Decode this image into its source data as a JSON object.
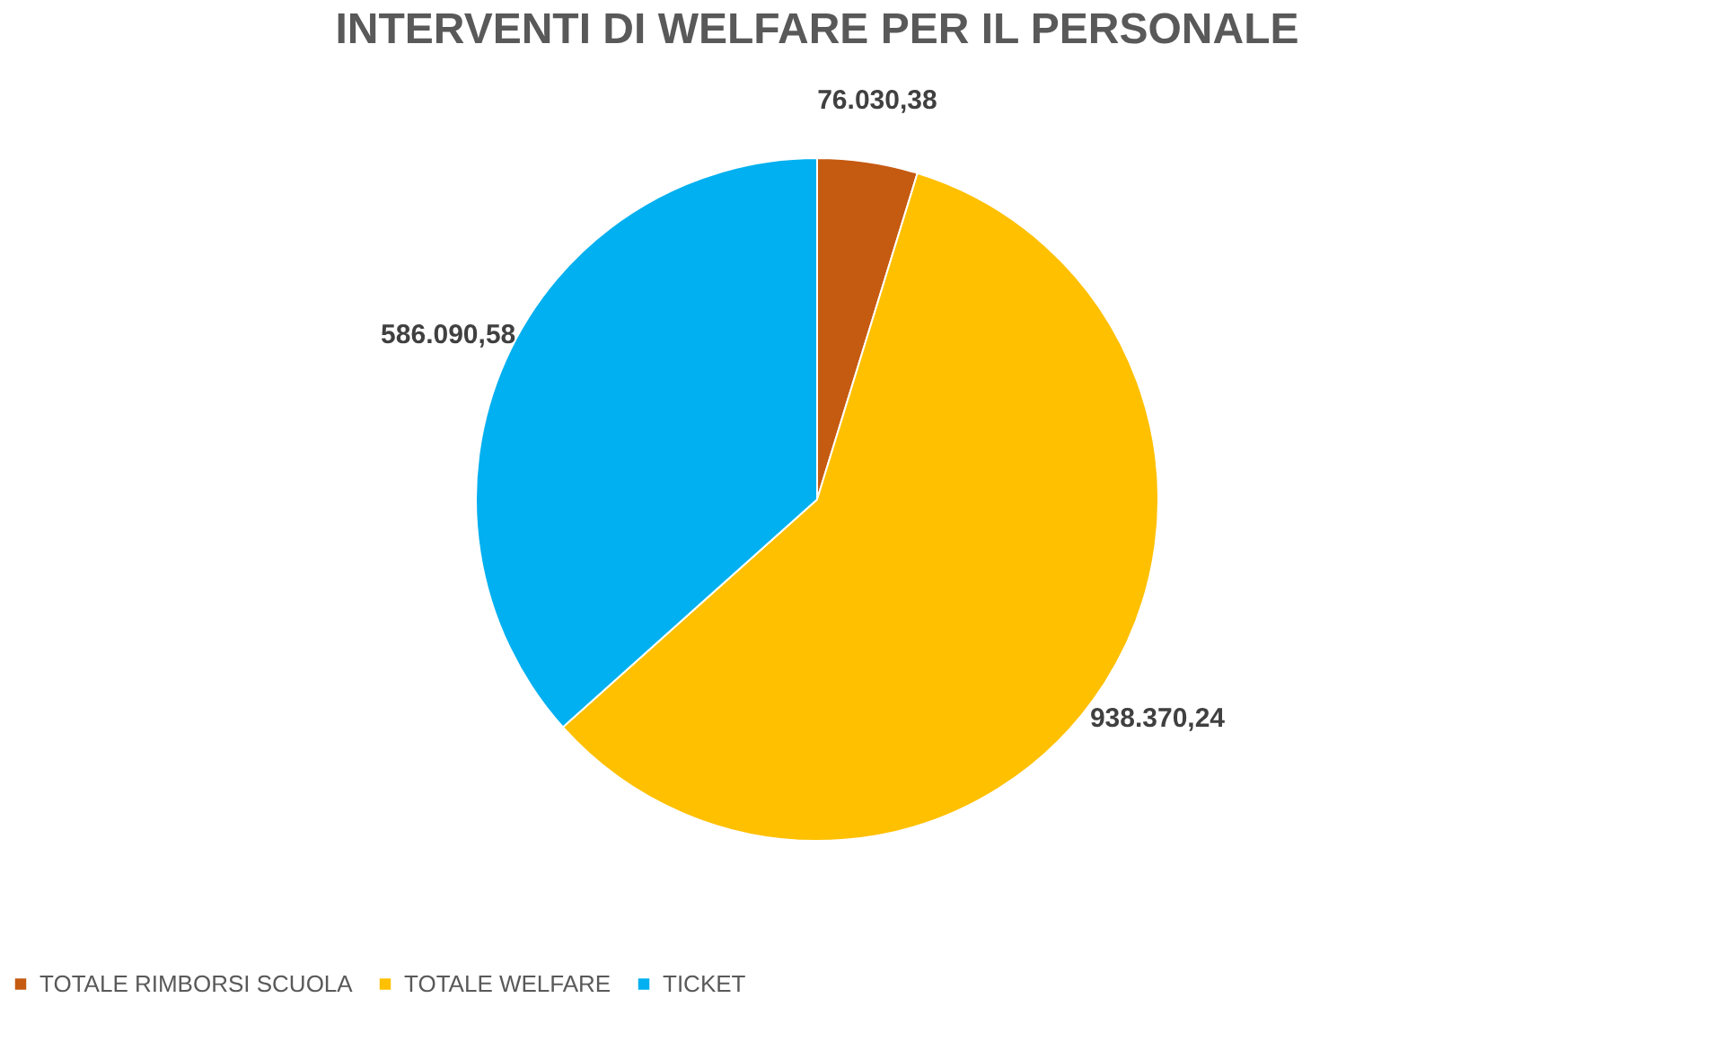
{
  "chart_data": {
    "type": "pie",
    "title": "INTERVENTI DI WELFARE PER IL PERSONALE",
    "categories": [
      "TOTALE RIMBORSI SCUOLA",
      "TOTALE WELFARE",
      "TICKET"
    ],
    "values": [
      76030.38,
      938370.24,
      586090.58
    ],
    "value_labels": [
      "76.030,38",
      "938.370,24",
      "586.090,58"
    ],
    "colors": [
      "#c55a11",
      "#ffc000",
      "#00b0f0"
    ],
    "legend": "bottom"
  }
}
